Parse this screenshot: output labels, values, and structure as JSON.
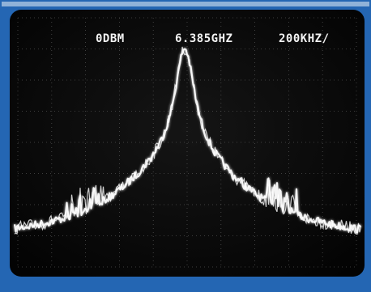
{
  "display": {
    "reference_level": "0DBM",
    "center_frequency": "6.385GHZ",
    "span_per_division": "200KHZ/"
  }
}
